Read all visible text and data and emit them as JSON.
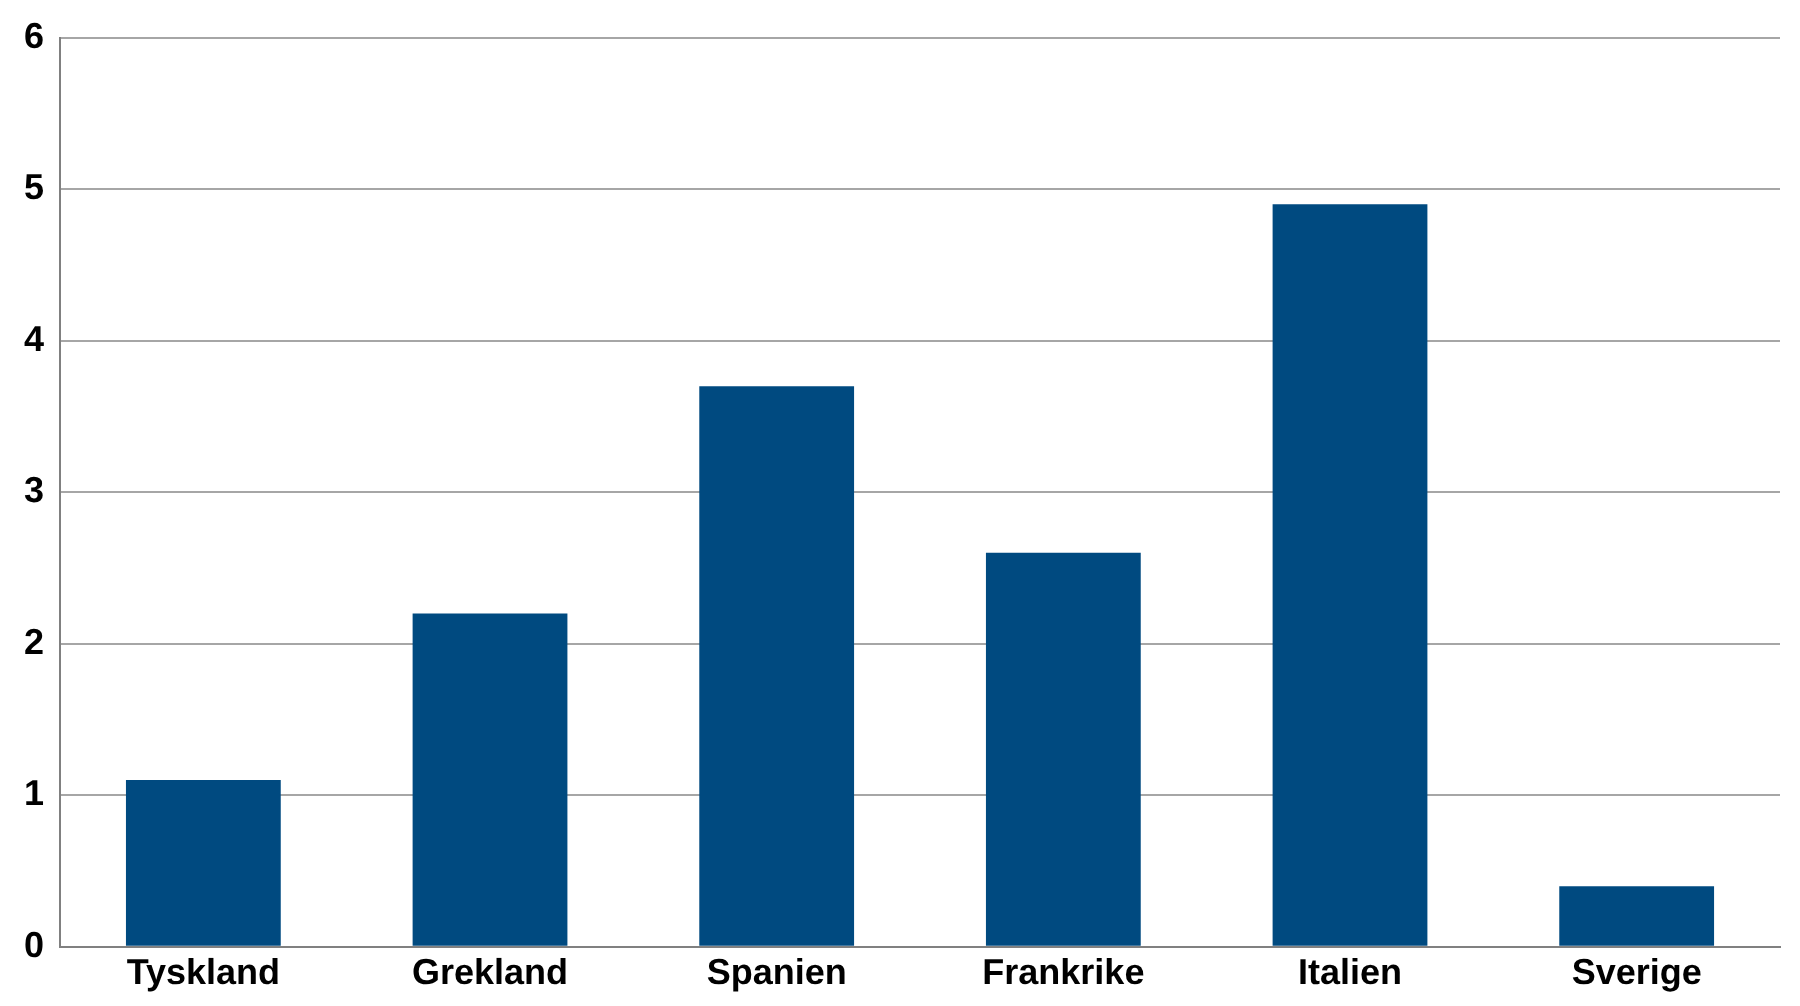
{
  "chart_data": {
    "type": "bar",
    "categories": [
      "Tyskland",
      "Grekland",
      "Spanien",
      "Frankrike",
      "Italien",
      "Sverige"
    ],
    "values": [
      1.1,
      2.2,
      3.7,
      2.6,
      4.9,
      0.4
    ],
    "color": "#004a80",
    "ylim": [
      0,
      6
    ],
    "yticks": [
      0,
      1,
      2,
      3,
      4,
      5,
      6
    ],
    "grid": "y",
    "legend": false
  }
}
